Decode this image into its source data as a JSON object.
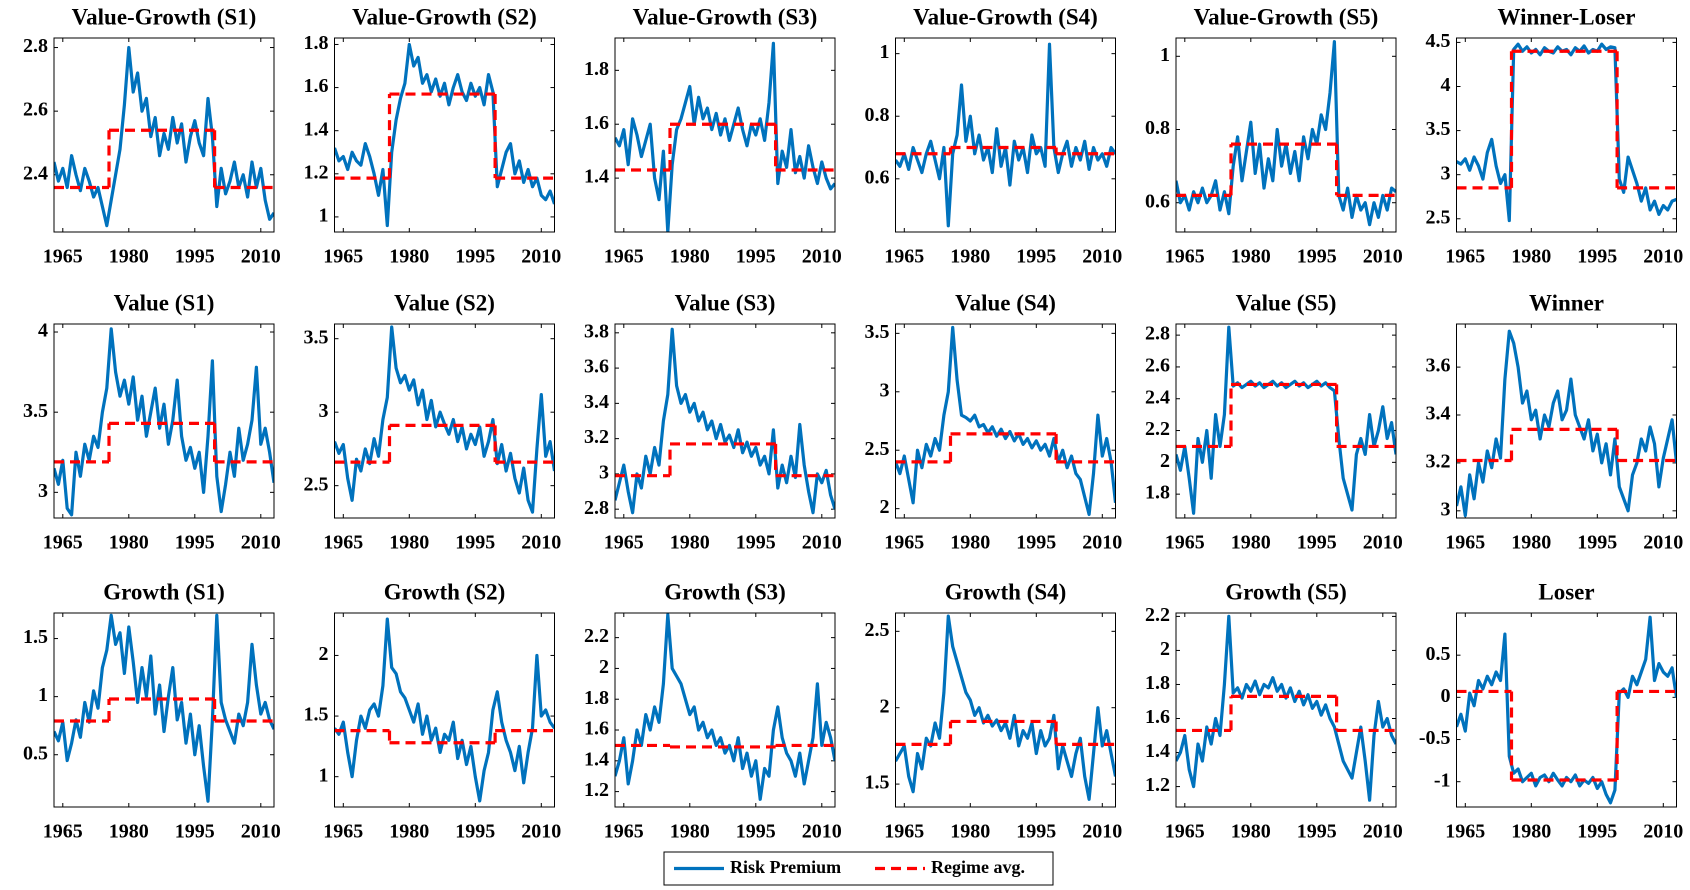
{
  "shared": {
    "x": [
      1963,
      1964,
      1965,
      1966,
      1967,
      1968,
      1969,
      1970,
      1971,
      1972,
      1973,
      1974,
      1975,
      1976,
      1977,
      1978,
      1979,
      1980,
      1981,
      1982,
      1983,
      1984,
      1985,
      1986,
      1987,
      1988,
      1989,
      1990,
      1991,
      1992,
      1993,
      1994,
      1995,
      1996,
      1997,
      1998,
      1999,
      2000,
      2001,
      2002,
      2003,
      2004,
      2005,
      2006,
      2007,
      2008,
      2009,
      2010,
      2011,
      2012,
      2013
    ],
    "xlim": [
      1963,
      2013
    ],
    "xticks": [
      1965,
      1980,
      1995,
      2010
    ],
    "regime_breaks": [
      1975.5,
      1999.5
    ]
  },
  "legend": {
    "series": [
      {
        "name": "Risk Premium",
        "color": "#0072bd",
        "dashed": false
      },
      {
        "name": "Regime avg.",
        "color": "#ff0000",
        "dashed": true
      }
    ]
  },
  "chart_data": [
    {
      "type": "line",
      "title": "Value-Growth (S1)",
      "ylim": [
        2.22,
        2.83
      ],
      "yticks": [
        2.4,
        2.6,
        2.8
      ],
      "regime": [
        2.36,
        2.54,
        2.36
      ],
      "values": [
        2.44,
        2.38,
        2.42,
        2.36,
        2.46,
        2.4,
        2.35,
        2.42,
        2.38,
        2.33,
        2.36,
        2.3,
        2.24,
        2.32,
        2.4,
        2.48,
        2.62,
        2.8,
        2.66,
        2.72,
        2.6,
        2.64,
        2.52,
        2.58,
        2.46,
        2.53,
        2.48,
        2.58,
        2.5,
        2.56,
        2.44,
        2.52,
        2.57,
        2.5,
        2.46,
        2.64,
        2.52,
        2.3,
        2.42,
        2.34,
        2.38,
        2.44,
        2.36,
        2.4,
        2.33,
        2.44,
        2.36,
        2.42,
        2.32,
        2.26,
        2.28
      ]
    },
    {
      "type": "line",
      "title": "Value-Growth (S2)",
      "ylim": [
        0.93,
        1.83
      ],
      "yticks": [
        1,
        1.2,
        1.4,
        1.6,
        1.8
      ],
      "regime": [
        1.18,
        1.57,
        1.18
      ],
      "values": [
        1.32,
        1.26,
        1.28,
        1.22,
        1.3,
        1.26,
        1.24,
        1.34,
        1.28,
        1.2,
        1.1,
        1.22,
        0.96,
        1.3,
        1.45,
        1.55,
        1.62,
        1.8,
        1.7,
        1.74,
        1.62,
        1.66,
        1.58,
        1.64,
        1.56,
        1.62,
        1.52,
        1.6,
        1.66,
        1.58,
        1.54,
        1.62,
        1.56,
        1.6,
        1.52,
        1.66,
        1.58,
        1.14,
        1.22,
        1.3,
        1.34,
        1.2,
        1.26,
        1.16,
        1.22,
        1.14,
        1.18,
        1.1,
        1.08,
        1.12,
        1.06
      ]
    },
    {
      "type": "line",
      "title": "Value-Growth (S3)",
      "ylim": [
        1.2,
        1.92
      ],
      "yticks": [
        1.4,
        1.6,
        1.8
      ],
      "regime": [
        1.43,
        1.6,
        1.43
      ],
      "values": [
        1.55,
        1.52,
        1.58,
        1.45,
        1.62,
        1.56,
        1.48,
        1.54,
        1.6,
        1.4,
        1.32,
        1.5,
        1.2,
        1.45,
        1.58,
        1.62,
        1.68,
        1.74,
        1.6,
        1.7,
        1.62,
        1.66,
        1.58,
        1.64,
        1.56,
        1.62,
        1.54,
        1.6,
        1.66,
        1.58,
        1.52,
        1.6,
        1.56,
        1.62,
        1.54,
        1.68,
        1.9,
        1.38,
        1.5,
        1.44,
        1.58,
        1.42,
        1.48,
        1.4,
        1.52,
        1.44,
        1.38,
        1.46,
        1.4,
        1.36,
        1.38
      ]
    },
    {
      "type": "line",
      "title": "Value-Growth (S4)",
      "ylim": [
        0.43,
        1.05
      ],
      "yticks": [
        0.6,
        0.8,
        1
      ],
      "regime": [
        0.68,
        0.7,
        0.68
      ],
      "values": [
        0.66,
        0.64,
        0.68,
        0.63,
        0.7,
        0.66,
        0.62,
        0.68,
        0.72,
        0.66,
        0.6,
        0.7,
        0.45,
        0.68,
        0.74,
        0.9,
        0.72,
        0.8,
        0.68,
        0.74,
        0.66,
        0.7,
        0.62,
        0.76,
        0.64,
        0.7,
        0.58,
        0.72,
        0.66,
        0.7,
        0.62,
        0.74,
        0.68,
        0.7,
        0.64,
        1.03,
        0.7,
        0.62,
        0.68,
        0.72,
        0.64,
        0.7,
        0.66,
        0.72,
        0.63,
        0.7,
        0.66,
        0.68,
        0.64,
        0.7,
        0.68
      ]
    },
    {
      "type": "line",
      "title": "Value-Growth (S5)",
      "ylim": [
        0.52,
        1.05
      ],
      "yticks": [
        0.6,
        0.8,
        1
      ],
      "regime": [
        0.62,
        0.76,
        0.62
      ],
      "values": [
        0.66,
        0.6,
        0.62,
        0.58,
        0.63,
        0.6,
        0.64,
        0.6,
        0.62,
        0.66,
        0.58,
        0.63,
        0.57,
        0.7,
        0.78,
        0.66,
        0.74,
        0.82,
        0.68,
        0.76,
        0.64,
        0.72,
        0.66,
        0.8,
        0.7,
        0.76,
        0.68,
        0.74,
        0.66,
        0.78,
        0.72,
        0.8,
        0.76,
        0.84,
        0.8,
        0.9,
        1.04,
        0.62,
        0.58,
        0.64,
        0.56,
        0.62,
        0.58,
        0.6,
        0.54,
        0.6,
        0.56,
        0.62,
        0.58,
        0.64,
        0.63
      ]
    },
    {
      "type": "line",
      "title": "Winner-Loser",
      "ylim": [
        2.35,
        4.55
      ],
      "yticks": [
        2.5,
        3,
        3.5,
        4,
        4.5
      ],
      "regime": [
        2.85,
        4.4,
        2.85
      ],
      "values": [
        3.15,
        3.12,
        3.18,
        3.05,
        3.2,
        3.1,
        2.95,
        3.25,
        3.4,
        3.1,
        2.9,
        3.0,
        2.48,
        4.42,
        4.48,
        4.4,
        4.45,
        4.38,
        4.42,
        4.36,
        4.44,
        4.4,
        4.38,
        4.45,
        4.4,
        4.42,
        4.36,
        4.44,
        4.4,
        4.46,
        4.38,
        4.42,
        4.4,
        4.48,
        4.42,
        4.45,
        4.44,
        2.95,
        2.8,
        3.2,
        3.05,
        2.9,
        2.7,
        2.85,
        2.6,
        2.7,
        2.55,
        2.65,
        2.6,
        2.7,
        2.72
      ]
    },
    {
      "type": "line",
      "title": "Value (S1)",
      "ylim": [
        2.84,
        4.05
      ],
      "yticks": [
        3,
        3.5,
        4
      ],
      "regime": [
        3.19,
        3.43,
        3.19
      ],
      "values": [
        3.15,
        3.05,
        3.2,
        2.9,
        2.86,
        3.25,
        3.1,
        3.3,
        3.2,
        3.35,
        3.28,
        3.5,
        3.65,
        4.02,
        3.75,
        3.6,
        3.7,
        3.55,
        3.72,
        3.45,
        3.6,
        3.35,
        3.5,
        3.65,
        3.4,
        3.55,
        3.3,
        3.45,
        3.7,
        3.35,
        3.2,
        3.28,
        3.15,
        3.25,
        3.0,
        3.35,
        3.82,
        3.1,
        2.88,
        3.05,
        3.25,
        3.1,
        3.4,
        3.2,
        3.3,
        3.45,
        3.78,
        3.3,
        3.4,
        3.25,
        3.06
      ]
    },
    {
      "type": "line",
      "title": "Value (S2)",
      "ylim": [
        2.28,
        3.6
      ],
      "yticks": [
        2.5,
        3,
        3.5
      ],
      "regime": [
        2.66,
        2.91,
        2.66
      ],
      "values": [
        2.8,
        2.72,
        2.78,
        2.55,
        2.4,
        2.68,
        2.6,
        2.75,
        2.65,
        2.82,
        2.7,
        2.95,
        3.1,
        3.58,
        3.3,
        3.2,
        3.25,
        3.15,
        3.22,
        3.05,
        3.15,
        2.95,
        3.08,
        2.9,
        3.0,
        2.92,
        2.85,
        2.95,
        2.8,
        2.9,
        2.75,
        2.85,
        2.78,
        2.9,
        2.7,
        2.8,
        2.95,
        2.65,
        2.78,
        2.6,
        2.72,
        2.55,
        2.45,
        2.62,
        2.4,
        2.32,
        2.75,
        3.12,
        2.7,
        2.8,
        2.6
      ]
    },
    {
      "type": "line",
      "title": "Value (S3)",
      "ylim": [
        2.75,
        3.85
      ],
      "yticks": [
        2.8,
        3,
        3.2,
        3.4,
        3.6,
        3.8
      ],
      "regime": [
        2.99,
        3.17,
        2.99
      ],
      "values": [
        2.85,
        2.95,
        3.05,
        2.9,
        2.78,
        3.0,
        2.92,
        3.1,
        3.0,
        3.15,
        3.05,
        3.3,
        3.45,
        3.82,
        3.5,
        3.4,
        3.45,
        3.35,
        3.4,
        3.3,
        3.35,
        3.25,
        3.3,
        3.2,
        3.28,
        3.18,
        3.22,
        3.15,
        3.25,
        3.12,
        3.18,
        3.1,
        3.15,
        3.05,
        3.1,
        3.0,
        3.25,
        2.92,
        3.05,
        2.95,
        3.1,
        2.98,
        3.28,
        3.05,
        2.9,
        2.78,
        3.0,
        2.95,
        3.02,
        2.88,
        2.8
      ]
    },
    {
      "type": "line",
      "title": "Value (S4)",
      "ylim": [
        1.92,
        3.58
      ],
      "yticks": [
        2,
        2.5,
        3,
        3.5
      ],
      "regime": [
        2.4,
        2.64,
        2.4
      ],
      "values": [
        2.4,
        2.3,
        2.45,
        2.25,
        2.05,
        2.5,
        2.35,
        2.55,
        2.45,
        2.6,
        2.5,
        2.8,
        3.0,
        3.55,
        3.1,
        2.8,
        2.78,
        2.75,
        2.8,
        2.7,
        2.72,
        2.65,
        2.7,
        2.62,
        2.68,
        2.6,
        2.66,
        2.58,
        2.64,
        2.55,
        2.6,
        2.52,
        2.58,
        2.5,
        2.55,
        2.45,
        2.6,
        2.4,
        2.5,
        2.35,
        2.45,
        2.3,
        2.25,
        2.1,
        1.95,
        2.3,
        2.8,
        2.45,
        2.6,
        2.4,
        2.05
      ]
    },
    {
      "type": "line",
      "title": "Value (S5)",
      "ylim": [
        1.65,
        2.87
      ],
      "yticks": [
        1.8,
        2,
        2.2,
        2.4,
        2.6,
        2.8
      ],
      "regime": [
        2.1,
        2.49,
        2.1
      ],
      "values": [
        2.05,
        1.95,
        2.1,
        1.9,
        1.68,
        2.15,
        2.0,
        2.2,
        1.9,
        2.3,
        2.1,
        2.3,
        2.85,
        2.48,
        2.5,
        2.47,
        2.49,
        2.51,
        2.48,
        2.5,
        2.47,
        2.49,
        2.51,
        2.48,
        2.5,
        2.47,
        2.49,
        2.51,
        2.48,
        2.5,
        2.47,
        2.49,
        2.51,
        2.48,
        2.5,
        2.47,
        2.45,
        2.15,
        1.9,
        1.8,
        1.7,
        2.05,
        2.15,
        2.05,
        2.3,
        2.1,
        2.2,
        2.35,
        2.15,
        2.25,
        2.05
      ]
    },
    {
      "type": "line",
      "title": "Winner",
      "ylim": [
        2.97,
        3.78
      ],
      "yticks": [
        3,
        3.2,
        3.4,
        3.6
      ],
      "regime": [
        3.21,
        3.34,
        3.21
      ],
      "values": [
        3.02,
        3.1,
        2.98,
        3.15,
        3.05,
        3.2,
        3.12,
        3.25,
        3.18,
        3.3,
        3.22,
        3.55,
        3.75,
        3.7,
        3.6,
        3.45,
        3.5,
        3.38,
        3.42,
        3.3,
        3.4,
        3.35,
        3.45,
        3.5,
        3.38,
        3.42,
        3.55,
        3.4,
        3.35,
        3.3,
        3.38,
        3.25,
        3.32,
        3.2,
        3.28,
        3.15,
        3.3,
        3.1,
        3.05,
        3.0,
        3.15,
        3.2,
        3.3,
        3.25,
        3.35,
        3.28,
        3.1,
        3.22,
        3.3,
        3.38,
        3.2
      ]
    },
    {
      "type": "line",
      "title": "Growth (S1)",
      "ylim": [
        0.05,
        1.72
      ],
      "yticks": [
        0.5,
        1,
        1.5
      ],
      "regime": [
        0.79,
        0.98,
        0.79
      ],
      "values": [
        0.7,
        0.62,
        0.78,
        0.45,
        0.6,
        0.8,
        0.65,
        0.95,
        0.78,
        1.05,
        0.9,
        1.25,
        1.4,
        1.7,
        1.45,
        1.55,
        1.2,
        1.6,
        1.3,
        0.95,
        1.25,
        1.0,
        1.35,
        0.85,
        1.1,
        0.7,
        1.0,
        1.25,
        0.8,
        0.95,
        0.6,
        0.85,
        0.5,
        0.75,
        0.4,
        0.1,
        0.8,
        1.7,
        0.95,
        0.8,
        0.7,
        0.6,
        0.85,
        0.75,
        0.95,
        1.45,
        1.1,
        0.85,
        0.95,
        0.8,
        0.72
      ]
    },
    {
      "type": "line",
      "title": "Growth (S2)",
      "ylim": [
        0.75,
        2.35
      ],
      "yticks": [
        1,
        1.5,
        2
      ],
      "regime": [
        1.38,
        1.28,
        1.38
      ],
      "values": [
        1.4,
        1.35,
        1.45,
        1.2,
        1.0,
        1.3,
        1.5,
        1.4,
        1.55,
        1.6,
        1.5,
        1.75,
        2.3,
        1.9,
        1.85,
        1.7,
        1.65,
        1.55,
        1.45,
        1.6,
        1.35,
        1.5,
        1.3,
        1.4,
        1.2,
        1.35,
        1.3,
        1.45,
        1.15,
        1.3,
        1.1,
        1.25,
        1.0,
        0.8,
        1.05,
        1.2,
        1.55,
        1.7,
        1.45,
        1.3,
        1.2,
        1.05,
        1.25,
        0.95,
        1.2,
        1.4,
        2.0,
        1.5,
        1.55,
        1.45,
        1.4
      ]
    },
    {
      "type": "line",
      "title": "Growth (S3)",
      "ylim": [
        1.1,
        2.36
      ],
      "yticks": [
        1.2,
        1.4,
        1.6,
        1.8,
        2,
        2.2
      ],
      "regime": [
        1.5,
        1.49,
        1.5
      ],
      "values": [
        1.3,
        1.4,
        1.55,
        1.25,
        1.4,
        1.6,
        1.5,
        1.7,
        1.6,
        1.75,
        1.65,
        1.9,
        2.35,
        2.0,
        1.95,
        1.9,
        1.8,
        1.7,
        1.75,
        1.6,
        1.65,
        1.55,
        1.6,
        1.5,
        1.55,
        1.45,
        1.5,
        1.4,
        1.55,
        1.35,
        1.45,
        1.3,
        1.4,
        1.15,
        1.35,
        1.3,
        1.6,
        1.75,
        1.55,
        1.45,
        1.4,
        1.3,
        1.45,
        1.25,
        1.4,
        1.55,
        1.9,
        1.5,
        1.65,
        1.55,
        1.4
      ]
    },
    {
      "type": "line",
      "title": "Growth (S4)",
      "ylim": [
        1.35,
        2.62
      ],
      "yticks": [
        1.5,
        2,
        2.5
      ],
      "regime": [
        1.76,
        1.91,
        1.76
      ],
      "values": [
        1.65,
        1.7,
        1.75,
        1.55,
        1.45,
        1.7,
        1.6,
        1.8,
        1.75,
        1.9,
        1.8,
        2.1,
        2.6,
        2.4,
        2.3,
        2.2,
        2.1,
        2.05,
        1.95,
        2.0,
        1.9,
        1.95,
        1.88,
        1.92,
        1.85,
        1.9,
        1.8,
        1.95,
        1.75,
        1.85,
        1.8,
        1.9,
        1.7,
        1.85,
        1.75,
        1.8,
        1.95,
        1.6,
        1.75,
        1.65,
        1.55,
        1.7,
        1.8,
        1.55,
        1.4,
        1.7,
        2.0,
        1.75,
        1.85,
        1.7,
        1.55
      ]
    },
    {
      "type": "line",
      "title": "Growth (S5)",
      "ylim": [
        1.08,
        2.22
      ],
      "yticks": [
        1.2,
        1.4,
        1.6,
        1.8,
        2,
        2.2
      ],
      "regime": [
        1.53,
        1.73,
        1.53
      ],
      "values": [
        1.35,
        1.4,
        1.5,
        1.3,
        1.2,
        1.45,
        1.35,
        1.55,
        1.45,
        1.6,
        1.5,
        1.8,
        2.2,
        1.75,
        1.78,
        1.72,
        1.8,
        1.76,
        1.82,
        1.74,
        1.8,
        1.78,
        1.84,
        1.76,
        1.8,
        1.72,
        1.78,
        1.7,
        1.76,
        1.68,
        1.74,
        1.66,
        1.7,
        1.62,
        1.68,
        1.6,
        1.55,
        1.45,
        1.35,
        1.3,
        1.25,
        1.4,
        1.55,
        1.35,
        1.12,
        1.5,
        1.7,
        1.55,
        1.6,
        1.5,
        1.45
      ]
    },
    {
      "type": "line",
      "title": "Loser",
      "ylim": [
        -1.3,
        1.0
      ],
      "yticks": [
        -1,
        -0.5,
        0,
        0.5
      ],
      "regime": [
        0.07,
        -0.98,
        0.07
      ],
      "values": [
        -0.35,
        -0.2,
        -0.4,
        0.05,
        -0.1,
        0.2,
        0.1,
        0.25,
        0.15,
        0.3,
        0.2,
        0.75,
        -0.7,
        -0.9,
        -0.85,
        -1.0,
        -0.95,
        -0.9,
        -1.05,
        -0.95,
        -0.92,
        -1.0,
        -0.9,
        -0.98,
        -1.05,
        -0.95,
        -1.0,
        -0.92,
        -1.05,
        -0.98,
        -1.02,
        -0.95,
        -1.08,
        -1.0,
        -1.15,
        -1.25,
        -1.1,
        0.05,
        0.1,
        0.0,
        0.25,
        0.15,
        0.3,
        0.45,
        0.95,
        0.2,
        0.4,
        0.3,
        0.25,
        0.35,
        0.0
      ]
    }
  ]
}
